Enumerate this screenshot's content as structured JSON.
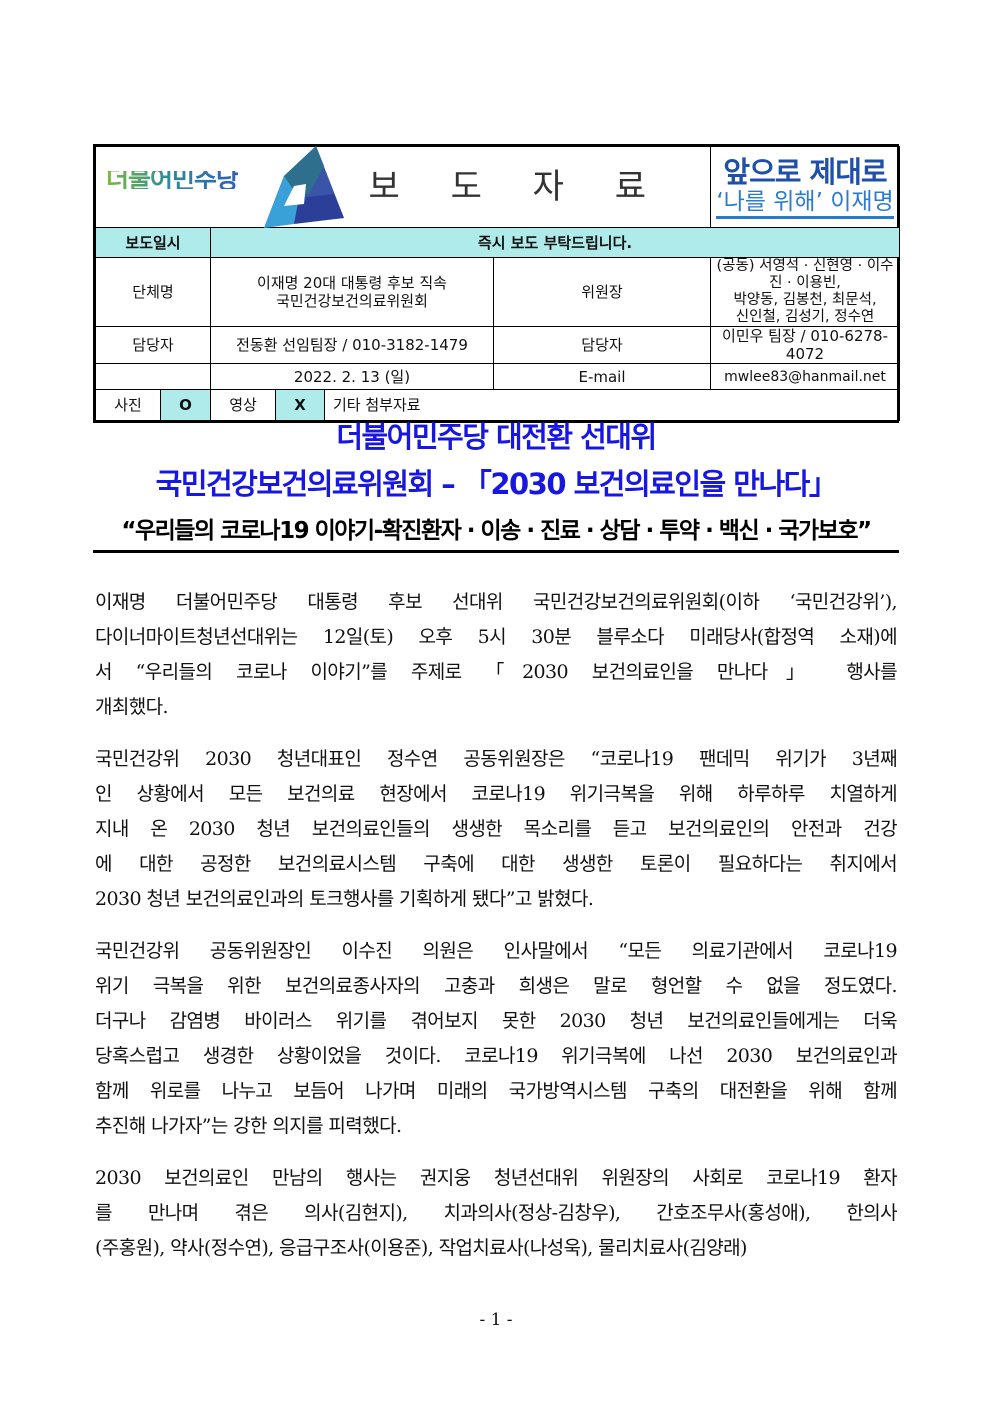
{
  "header": {
    "party_logo_text": "더불어민주당",
    "title": "보 도 자 료",
    "slogan_line1": "앞으로 제대로",
    "slogan_line2": "‘나를 위해’ 이재명",
    "colors": {
      "cyan_cell": "#b0ebeb",
      "headline_blue": "#1717e0",
      "slogan_blue": "#1f4fa8"
    }
  },
  "info": {
    "release_label": "보도일시",
    "release_value": "즉시 보도 부탁드립니다.",
    "org_label": "단체명",
    "org_value_1": "이재명 20대 대통령 후보 직속",
    "org_value_2": "국민건강보건의료위원회",
    "chair_label": "위원장",
    "chair_value_1": "(공동) 서영석 · 신현영 · 이수진 · 이용빈,",
    "chair_value_2": "박양동, 김봉천, 최문석,",
    "chair_value_3": "신인철, 김성기, 정수연",
    "contact_label": "담당자",
    "contact_value": "전동환 선임팀장 / 010-3182-1479",
    "contact2_label": "담당자",
    "contact2_value": "이민우 팀장 / 010-6278-4072",
    "date_value": "2022. 2. 13 (일)",
    "email_label": "E-mail",
    "email_value": "mwlee83@hanmail.net",
    "photo_label": "사진",
    "photo_value": "O",
    "video_label": "영상",
    "video_value": "X",
    "other_label": "기타 첨부자료"
  },
  "headlines": {
    "line1": "더불어민주당 대전환 선대위",
    "line2": "국민건강보건의료위원회 – 「2030 보건의료인을 만나다」",
    "line3": "“우리들의 코로나19 이야기-확진환자 · 이송 · 진료 · 상담 · 투약 · 백신 · 국가보호”"
  },
  "paragraphs": [
    [
      " 이재명 더불어민주당 대통령 후보 선대위 국민건강보건의료위원회(이하 ‘국민건강위’),",
      "다이너마이트청년선대위는 12일(토) 오후 5시 30분 블루소다 미래당사(합정역 소재)에",
      "서 “우리들의 코로나 이야기”를 주제로 「2030 보건의료인을 만나다」 행사를",
      "개최했다."
    ],
    [
      " 국민건강위 2030 청년대표인 정수연 공동위원장은 “코로나19 팬데믹 위기가 3년째",
      "인 상황에서 모든 보건의료 현장에서 코로나19 위기극복을 위해 하루하루 치열하게",
      "지내 온 2030 청년 보건의료인들의 생생한 목소리를 듣고 보건의료인의 안전과 건강",
      "에 대한 공정한 보건의료시스템 구축에 대한 생생한 토론이 필요하다는 취지에서",
      "2030 청년 보건의료인과의 토크행사를 기획하게 됐다”고 밝혔다."
    ],
    [
      " 국민건강위 공동위원장인 이수진 의원은 인사말에서 “모든 의료기관에서 코로나19",
      "위기 극복을 위한 보건의료종사자의 고충과 희생은 말로 형언할 수 없을 정도였다.",
      "더구나 감염병 바이러스 위기를 겪어보지 못한 2030 청년 보건의료인들에게는 더욱",
      "당혹스럽고 생경한 상황이었을 것이다. 코로나19 위기극복에 나선 2030 보건의료인과",
      "함께 위로를 나누고 보듬어 나가며 미래의 국가방역시스템 구축의 대전환을 위해 함께",
      "추진해 나가자”는 강한 의지를 피력했다."
    ],
    [
      " 2030 보건의료인 만남의 행사는 권지웅 청년선대위 위원장의 사회로 코로나19 환자",
      "를 만나며 겪은 의사(김현지), 치과의사(정상-김창우), 간호조무사(홍성애), 한의사",
      "(주홍원), 약사(정수연), 응급구조사(이용준), 작업치료사(나성욱), 물리치료사(김양래)"
    ]
  ],
  "page_number": "- 1 -"
}
